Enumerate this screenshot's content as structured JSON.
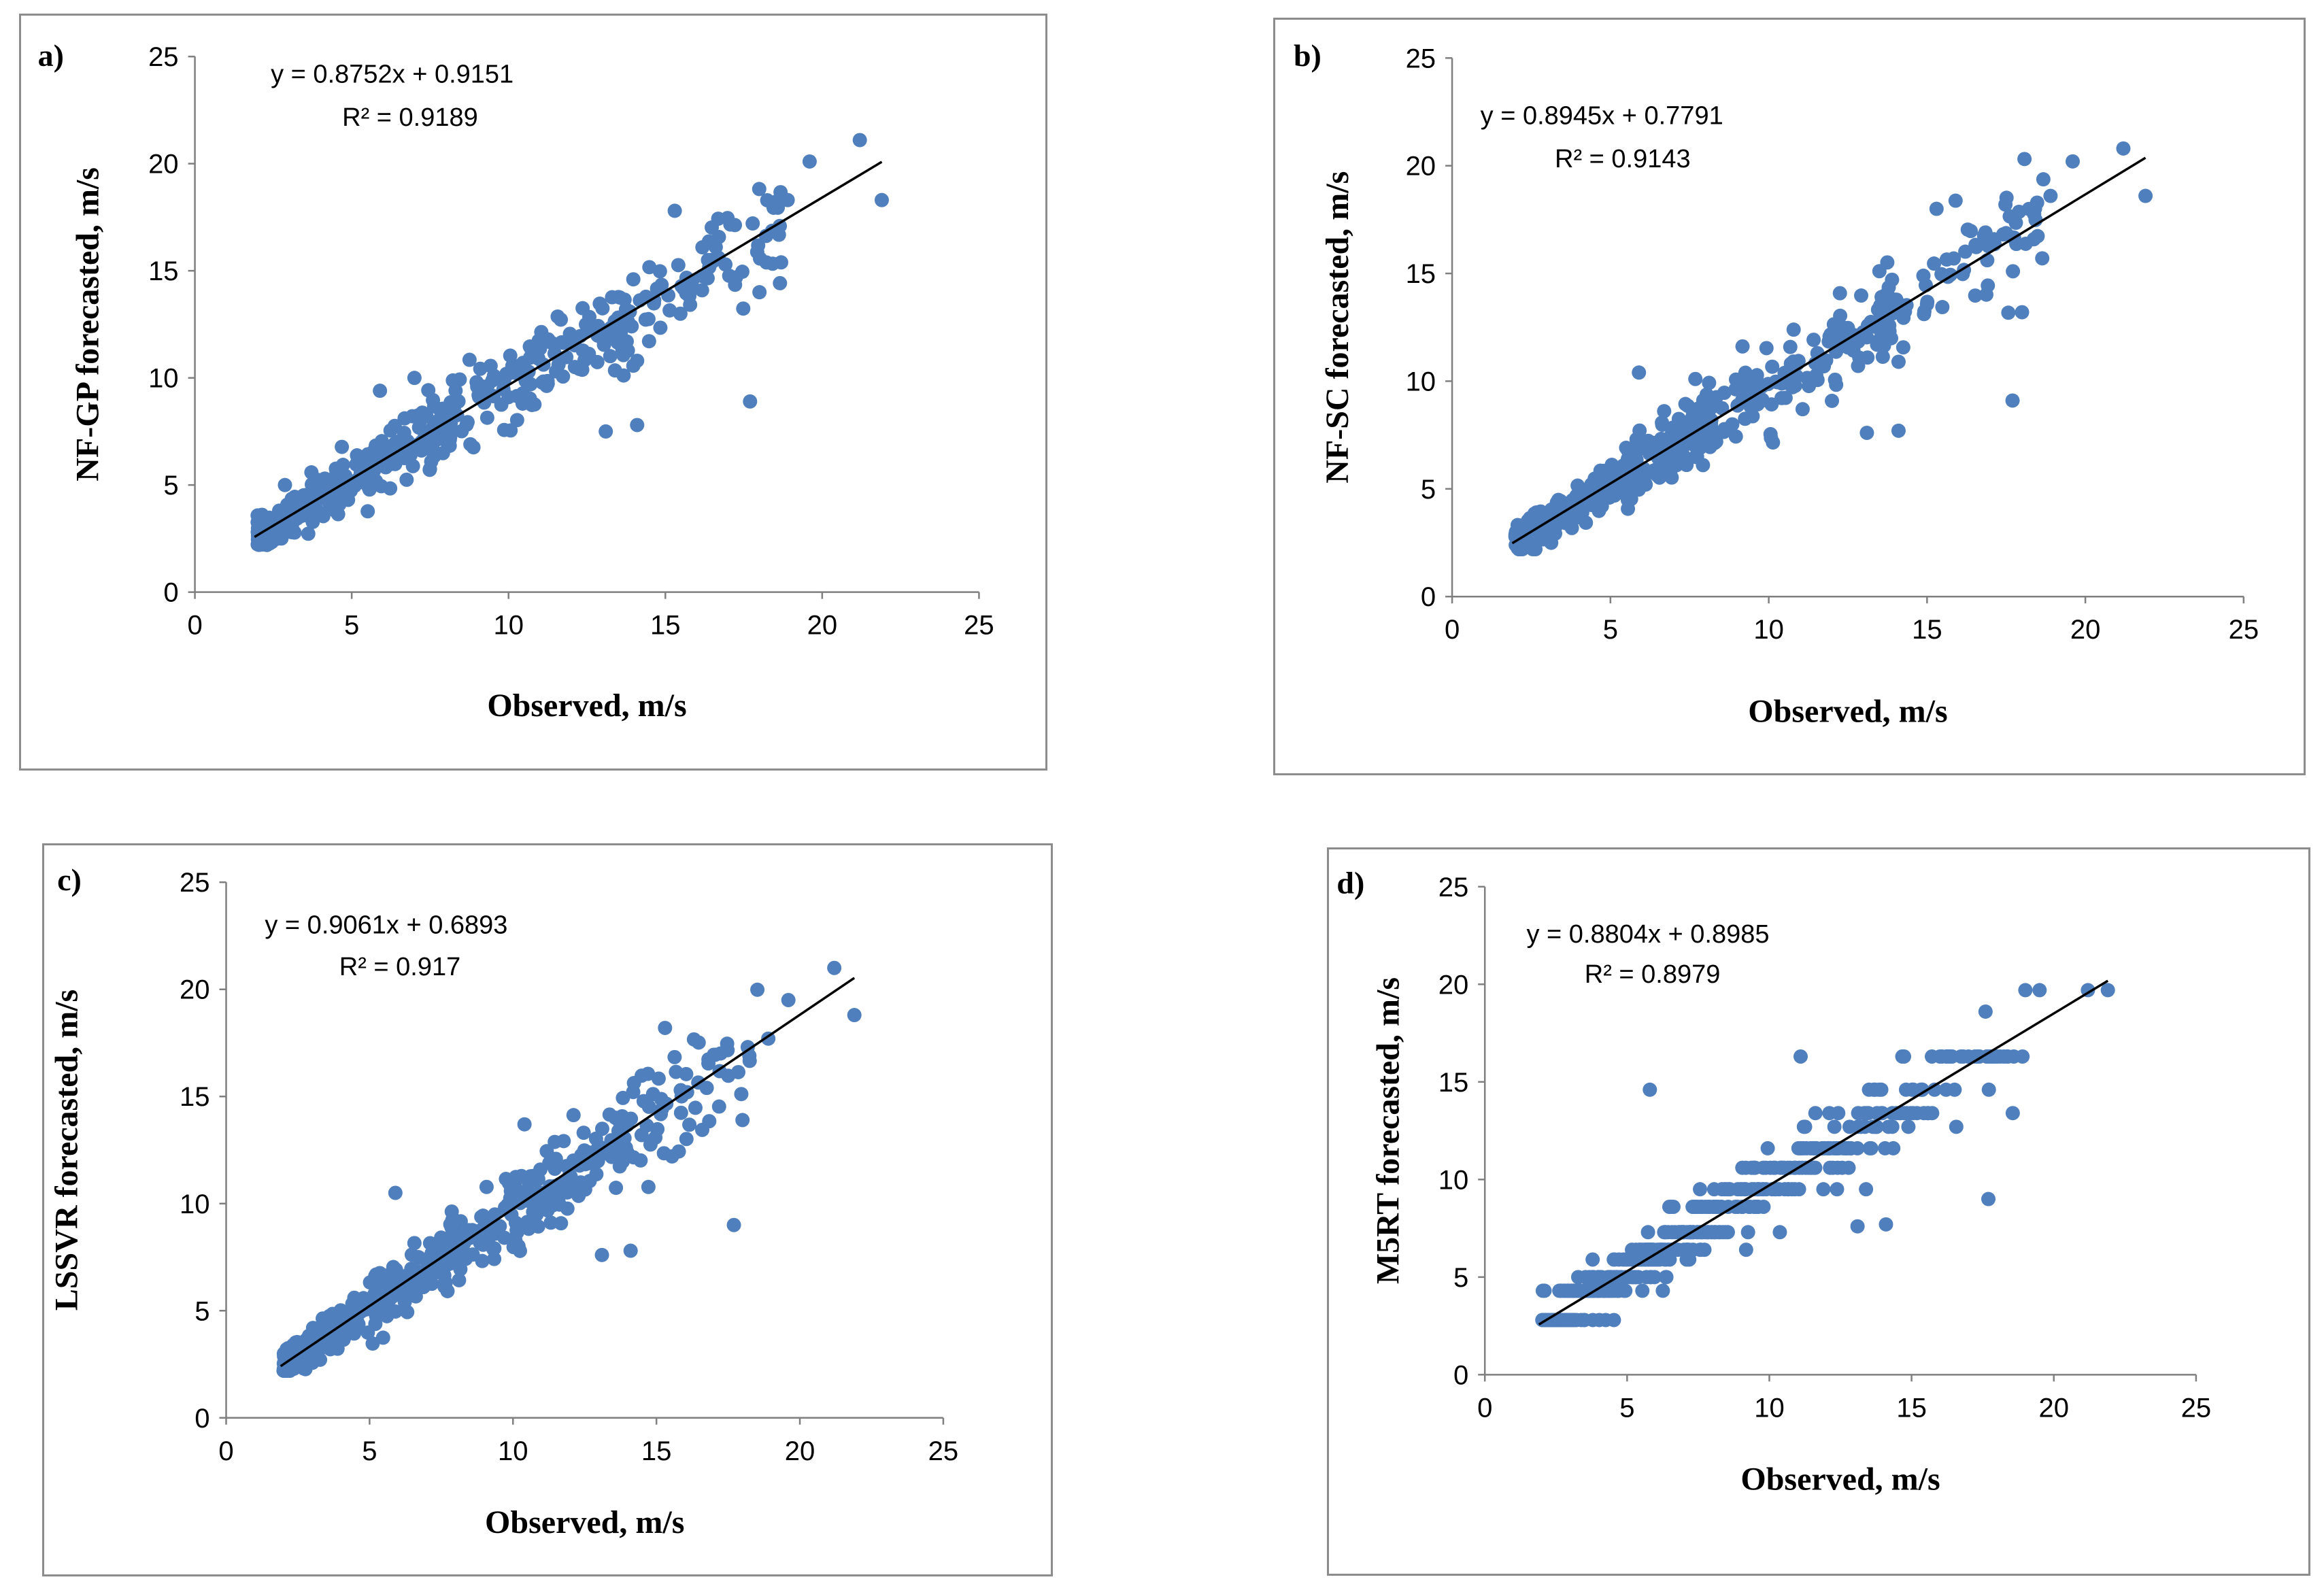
{
  "chart_data": [
    {
      "type": "scatter",
      "panel_label": "a)",
      "xlabel": "Observed, m/s",
      "ylabel": "NF-GP forecasted, m/s",
      "xlim": [
        0,
        25
      ],
      "ylim": [
        0,
        25
      ],
      "xticks": [
        "0",
        "5",
        "10",
        "15",
        "20",
        "25"
      ],
      "yticks": [
        "0",
        "5",
        "10",
        "15",
        "20",
        "25"
      ],
      "equation": "y = 0.8752x + 0.9151",
      "r2": "R² = 0.9189",
      "trendline": {
        "slope": 0.8752,
        "intercept": 0.9151,
        "x_range": [
          1.9,
          21.9
        ]
      },
      "color": "#4f7fbc",
      "highlight_points": [
        [
          21.2,
          21.1
        ],
        [
          19.6,
          20.1
        ],
        [
          21.9,
          18.3
        ],
        [
          17.7,
          8.9
        ],
        [
          15.3,
          17.8
        ],
        [
          18.0,
          14.0
        ],
        [
          14.1,
          10.8
        ],
        [
          14.1,
          7.8
        ],
        [
          13.1,
          7.5
        ],
        [
          18.9,
          18.3
        ],
        [
          5.9,
          9.4
        ],
        [
          7.0,
          10.0
        ]
      ]
    },
    {
      "type": "scatter",
      "panel_label": "b)",
      "xlabel": "Observed, m/s",
      "ylabel": "NF-SC forecasted, m/s",
      "xlim": [
        0,
        25
      ],
      "ylim": [
        0,
        25
      ],
      "xticks": [
        "0",
        "5",
        "10",
        "15",
        "20",
        "25"
      ],
      "yticks": [
        "0",
        "5",
        "10",
        "15",
        "20",
        "25"
      ],
      "equation": "y = 0.8945x + 0.7791",
      "r2": "R² = 0.9143",
      "trendline": {
        "slope": 0.8945,
        "intercept": 0.7791,
        "x_range": [
          1.9,
          21.9
        ]
      },
      "color": "#4f7fbc",
      "highlight_points": [
        [
          21.2,
          20.8
        ],
        [
          19.6,
          20.2
        ],
        [
          21.9,
          18.6
        ],
        [
          17.7,
          9.1
        ],
        [
          15.3,
          18.0
        ],
        [
          18.0,
          13.2
        ],
        [
          14.1,
          10.9
        ],
        [
          14.1,
          7.7
        ],
        [
          13.1,
          7.6
        ],
        [
          18.9,
          18.6
        ],
        [
          5.9,
          10.4
        ],
        [
          10.9,
          10.8
        ]
      ]
    },
    {
      "type": "scatter",
      "panel_label": "c)",
      "xlabel": "Observed, m/s",
      "ylabel": "LSSVR forecasted, m/s",
      "xlim": [
        0,
        25
      ],
      "ylim": [
        0,
        25
      ],
      "xticks": [
        "0",
        "5",
        "10",
        "15",
        "20",
        "25"
      ],
      "yticks": [
        "0",
        "5",
        "10",
        "15",
        "20",
        "25"
      ],
      "equation": "y = 0.9061x + 0.6893",
      "r2": "R² = 0.917",
      "trendline": {
        "slope": 0.9061,
        "intercept": 0.6893,
        "x_range": [
          1.9,
          21.9
        ]
      },
      "color": "#4f7fbc",
      "highlight_points": [
        [
          21.2,
          21.0
        ],
        [
          19.6,
          19.5
        ],
        [
          21.9,
          18.8
        ],
        [
          17.7,
          9.0
        ],
        [
          15.3,
          18.2
        ],
        [
          18.0,
          13.9
        ],
        [
          14.1,
          7.8
        ],
        [
          13.1,
          7.6
        ],
        [
          18.9,
          17.7
        ],
        [
          5.9,
          10.5
        ],
        [
          10.4,
          13.7
        ]
      ]
    },
    {
      "type": "scatter",
      "panel_label": "d)",
      "xlabel": "Observed, m/s",
      "ylabel": "M5RT forecasted, m/s",
      "xlim": [
        0,
        25
      ],
      "ylim": [
        0,
        25
      ],
      "xticks": [
        "0",
        "5",
        "10",
        "15",
        "20",
        "25"
      ],
      "yticks": [
        "0",
        "5",
        "10",
        "15",
        "20",
        "25"
      ],
      "equation": "y = 0.8804x + 0.8985",
      "r2": "R² = 0.8979",
      "trendline": {
        "slope": 0.8804,
        "intercept": 0.8985,
        "x_range": [
          1.9,
          21.9
        ]
      },
      "color": "#4f7fbc",
      "highlight_points": [
        [
          21.2,
          19.7
        ],
        [
          21.9,
          19.7
        ],
        [
          19.0,
          19.7
        ],
        [
          19.5,
          19.7
        ],
        [
          17.6,
          18.6
        ],
        [
          17.7,
          9.0
        ],
        [
          5.8,
          14.6
        ],
        [
          11.1,
          16.3
        ],
        [
          13.1,
          7.6
        ],
        [
          14.1,
          7.7
        ],
        [
          16.0,
          16.3
        ],
        [
          17.0,
          16.3
        ],
        [
          18.0,
          16.3
        ],
        [
          18.9,
          16.3
        ]
      ]
    }
  ]
}
